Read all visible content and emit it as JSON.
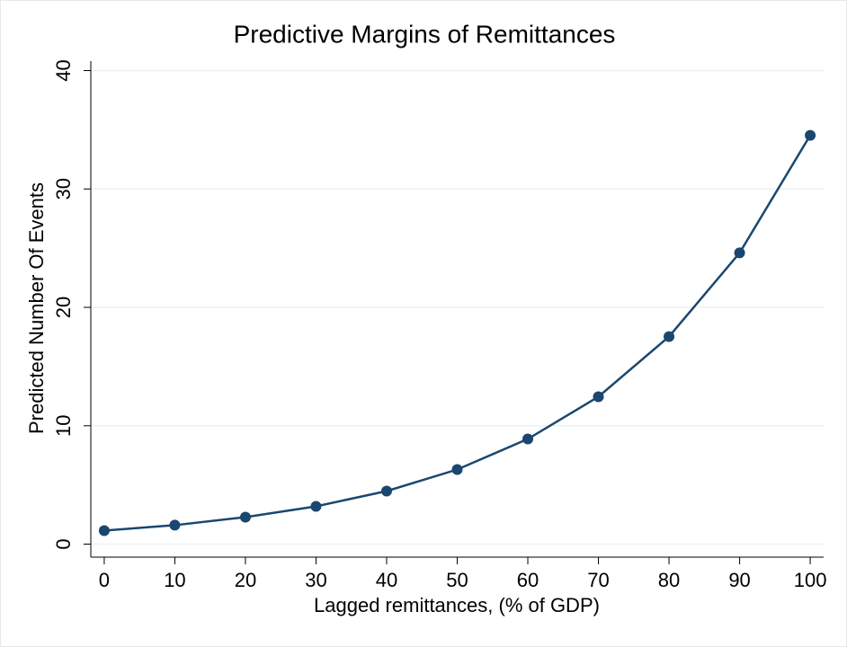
{
  "chart_data": {
    "type": "line",
    "title": "Predictive Margins of Remittances",
    "x_label": "Lagged remittances, (% of GDP)",
    "y_label": "Predicted Number Of Events",
    "x": [
      0,
      10,
      20,
      30,
      40,
      50,
      60,
      70,
      80,
      90,
      100
    ],
    "series": [
      {
        "color": "#1a476f",
        "values": [
          1.14,
          1.6,
          2.28,
          3.19,
          4.48,
          6.3,
          8.88,
          12.45,
          17.53,
          24.6,
          34.53
        ]
      }
    ],
    "xlim": [
      -1.9,
      101.9
    ],
    "ylim": [
      -1.1,
      40.8
    ],
    "xticks": [
      0,
      10,
      20,
      30,
      40,
      50,
      60,
      70,
      80,
      90,
      100
    ],
    "yticks": [
      0,
      10,
      20,
      30,
      40
    ],
    "grid": true
  }
}
